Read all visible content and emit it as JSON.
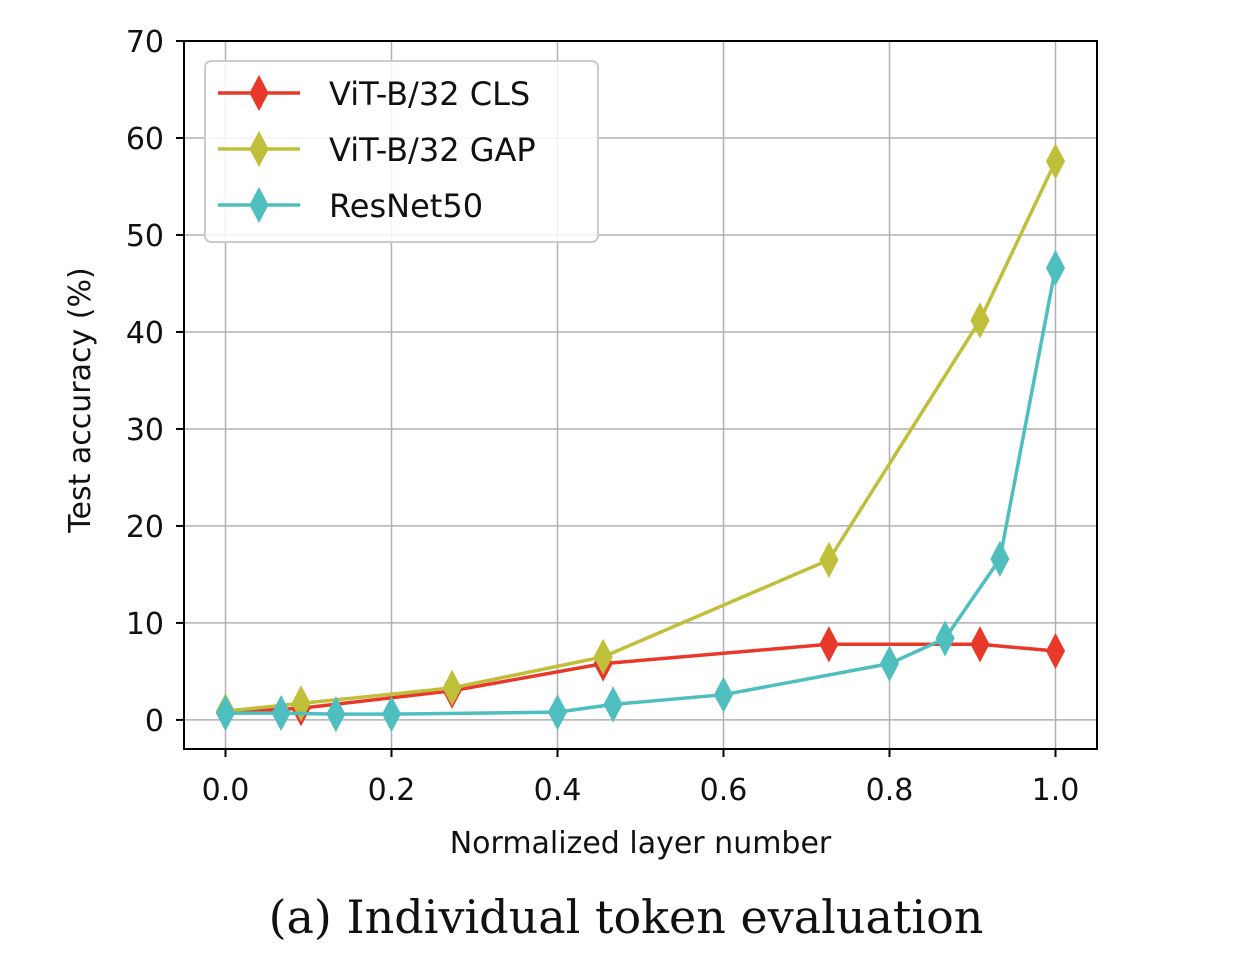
{
  "chart_data": {
    "type": "line",
    "xlabel": "Normalized layer number",
    "ylabel": "Test accuracy (%)",
    "caption": "(a) Individual token evaluation",
    "xlim": [
      -0.05,
      1.05
    ],
    "ylim": [
      -3,
      70
    ],
    "x_ticks": [
      0.0,
      0.2,
      0.4,
      0.6,
      0.8,
      1.0
    ],
    "x_tick_labels": [
      "0.0",
      "0.2",
      "0.4",
      "0.6",
      "0.8",
      "1.0"
    ],
    "y_ticks": [
      0,
      10,
      20,
      30,
      40,
      50,
      60,
      70
    ],
    "y_tick_labels": [
      "0",
      "10",
      "20",
      "30",
      "40",
      "50",
      "60",
      "70"
    ],
    "grid": true,
    "legend_position": "top-left",
    "marker": "thin-diamond",
    "series": [
      {
        "name": "ViT-B/32 CLS",
        "color": "#e8382a",
        "x": [
          0.0,
          0.091,
          0.273,
          0.455,
          0.727,
          0.909,
          1.0
        ],
        "y": [
          0.8,
          1.2,
          3.0,
          5.8,
          7.8,
          7.8,
          7.1
        ]
      },
      {
        "name": "ViT-B/32 GAP",
        "color": "#bfbf3a",
        "x": [
          0.0,
          0.091,
          0.273,
          0.455,
          0.727,
          0.909,
          1.0
        ],
        "y": [
          0.9,
          1.7,
          3.3,
          6.5,
          16.5,
          41.2,
          57.6
        ]
      },
      {
        "name": "ResNet50",
        "color": "#4fbebe",
        "x": [
          0.0,
          0.067,
          0.133,
          0.2,
          0.4,
          0.467,
          0.6,
          0.8,
          0.867,
          0.933,
          1.0
        ],
        "y": [
          0.7,
          0.7,
          0.6,
          0.6,
          0.8,
          1.6,
          2.6,
          5.8,
          8.4,
          16.6,
          46.6
        ]
      }
    ]
  }
}
